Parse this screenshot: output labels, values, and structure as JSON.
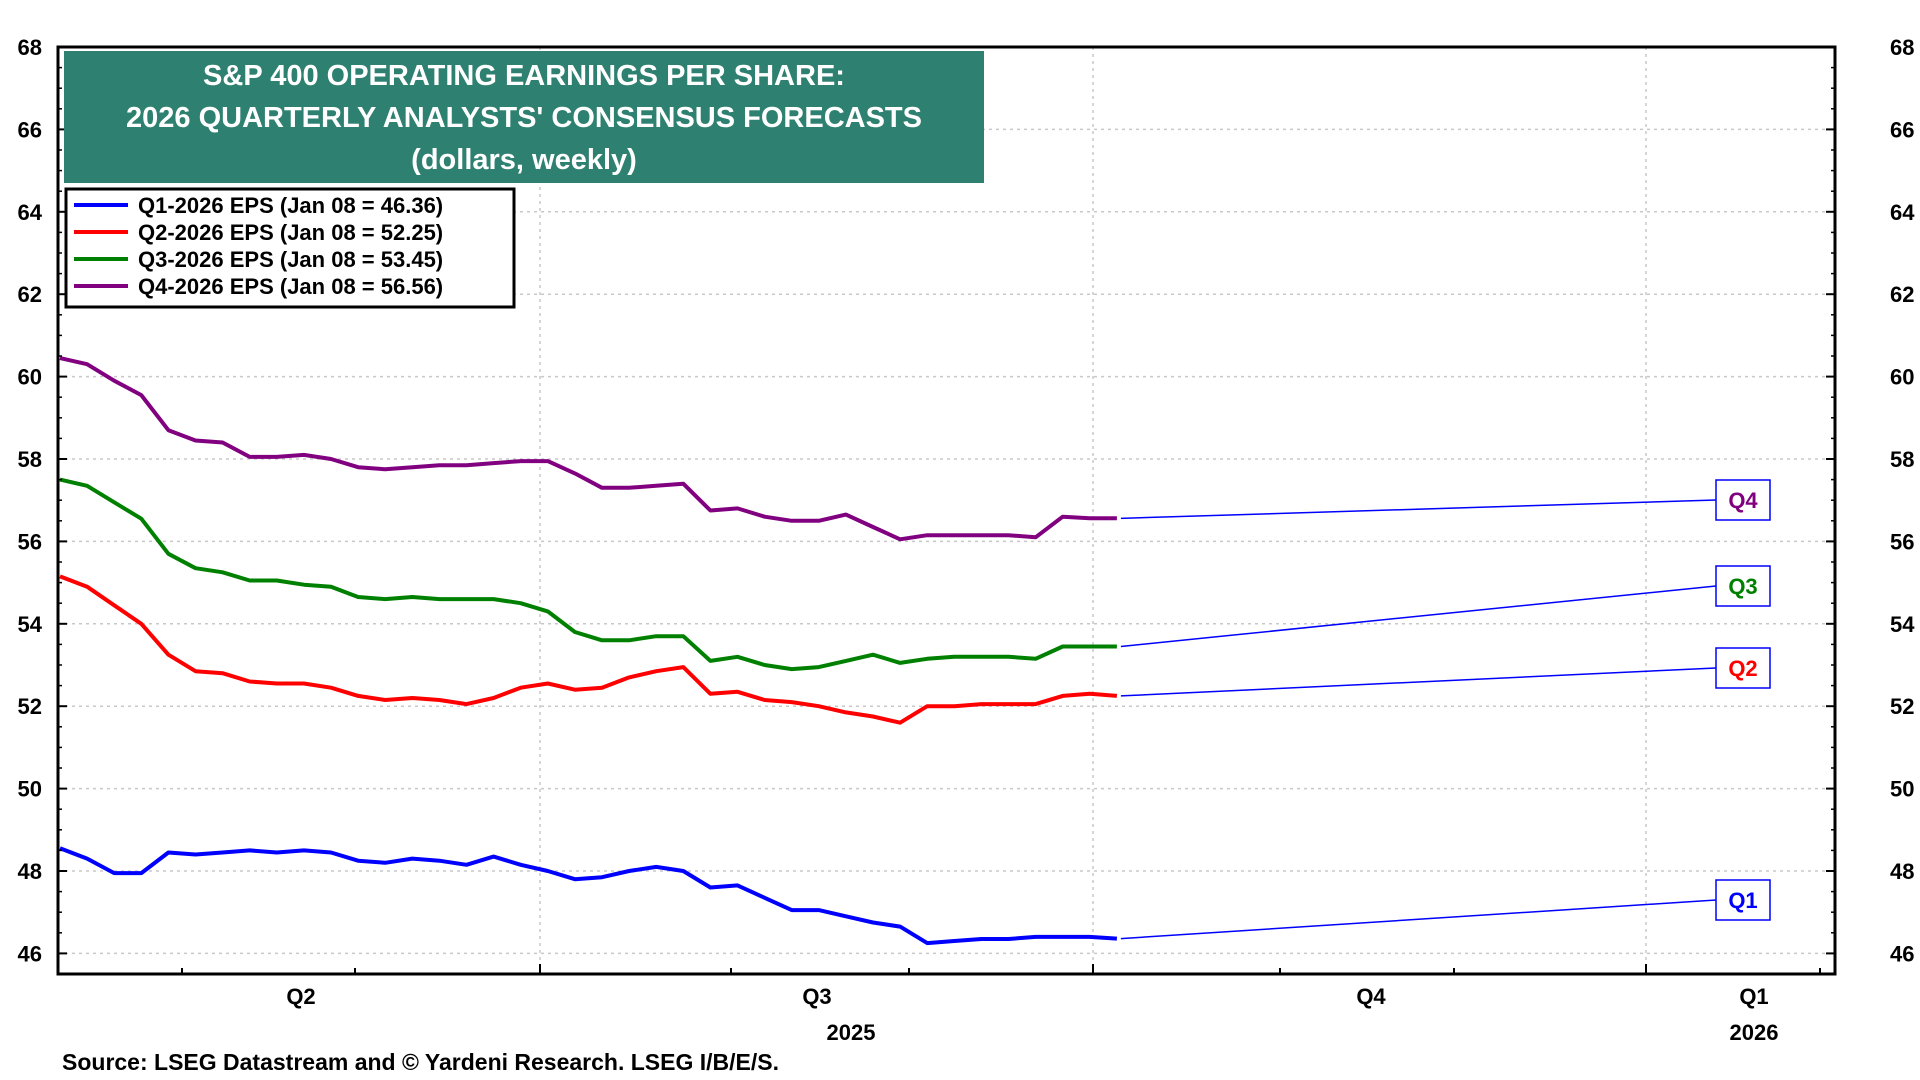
{
  "chart_data": {
    "type": "line",
    "title": [
      "S&P 400 OPERATING EARNINGS PER SHARE:",
      "2026 QUARTERLY ANALYSTS' CONSENSUS FORECASTS",
      "(dollars, weekly)"
    ],
    "ylim": [
      45.5,
      68
    ],
    "yticks": [
      46,
      48,
      50,
      52,
      54,
      56,
      58,
      60,
      62,
      64,
      66,
      68
    ],
    "grid": true,
    "legend_position": "top-left",
    "x_quarter_labels": [
      "Q2",
      "Q3",
      "Q4",
      "Q1"
    ],
    "x_year_labels": [
      "2025",
      "2026"
    ],
    "colors": {
      "q1": "#0000ff",
      "q2": "#ff0000",
      "q3": "#008000",
      "q4": "#800080",
      "title_bg": "#2e8070"
    },
    "series": [
      {
        "key": "q1",
        "name": "Q1-2026 EPS (Jan 08 = 46.36)",
        "end_label": "Q1",
        "values": [
          48.55,
          48.3,
          47.95,
          47.95,
          48.45,
          48.4,
          48.45,
          48.5,
          48.45,
          48.5,
          48.45,
          48.25,
          48.2,
          48.3,
          48.25,
          48.15,
          48.35,
          48.15,
          48.0,
          47.8,
          47.85,
          48.0,
          48.1,
          48.0,
          47.6,
          47.65,
          47.35,
          47.05,
          47.05,
          46.9,
          46.75,
          46.65,
          46.25,
          46.3,
          46.35,
          46.35,
          46.4,
          46.4,
          46.4,
          46.36
        ]
      },
      {
        "key": "q2",
        "name": "Q2-2026 EPS (Jan 08 = 52.25)",
        "end_label": "Q2",
        "values": [
          55.15,
          54.9,
          54.45,
          54.0,
          53.25,
          52.85,
          52.8,
          52.6,
          52.55,
          52.55,
          52.45,
          52.25,
          52.15,
          52.2,
          52.15,
          52.05,
          52.2,
          52.45,
          52.55,
          52.4,
          52.45,
          52.7,
          52.85,
          52.95,
          52.3,
          52.35,
          52.15,
          52.1,
          52.0,
          51.85,
          51.75,
          51.6,
          52.0,
          52.0,
          52.05,
          52.05,
          52.05,
          52.25,
          52.3,
          52.25
        ]
      },
      {
        "key": "q3",
        "name": "Q3-2026 EPS (Jan 08 = 53.45)",
        "end_label": "Q3",
        "values": [
          57.5,
          57.35,
          56.95,
          56.55,
          55.7,
          55.35,
          55.25,
          55.05,
          55.05,
          54.95,
          54.9,
          54.65,
          54.6,
          54.65,
          54.6,
          54.6,
          54.6,
          54.5,
          54.3,
          53.8,
          53.6,
          53.6,
          53.7,
          53.7,
          53.1,
          53.2,
          53.0,
          52.9,
          52.95,
          53.1,
          53.25,
          53.05,
          53.15,
          53.2,
          53.2,
          53.2,
          53.15,
          53.45,
          53.45,
          53.45
        ]
      },
      {
        "key": "q4",
        "name": "Q4-2026 EPS (Jan 08 = 56.56)",
        "end_label": "Q4",
        "values": [
          60.45,
          60.3,
          59.9,
          59.55,
          58.7,
          58.45,
          58.4,
          58.05,
          58.05,
          58.1,
          58.0,
          57.8,
          57.75,
          57.8,
          57.85,
          57.85,
          57.9,
          57.95,
          57.95,
          57.65,
          57.3,
          57.3,
          57.35,
          57.4,
          56.75,
          56.8,
          56.6,
          56.5,
          56.5,
          56.65,
          56.35,
          56.05,
          56.15,
          56.15,
          56.15,
          56.15,
          56.1,
          56.6,
          56.56,
          56.56
        ]
      }
    ]
  },
  "source": "Source: LSEG Datastream and © Yardeni Research. LSEG I/B/E/S."
}
